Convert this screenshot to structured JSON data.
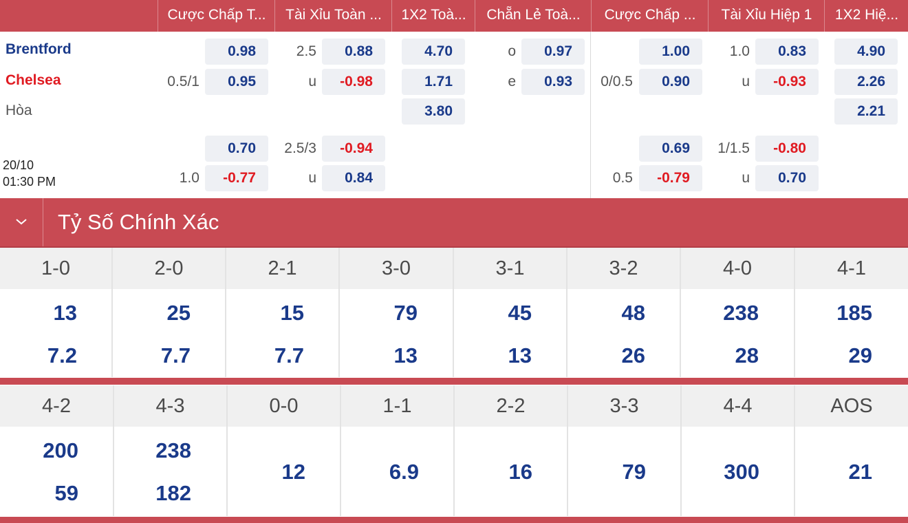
{
  "header": {
    "columns": [
      "Cược Chấp T...",
      "Tài Xỉu Toàn ...",
      "1X2 Toà...",
      "Chẵn Lẻ Toà...",
      "Cược Chấp ...",
      "Tài Xỉu Hiệp 1",
      "1X2 Hiệ..."
    ]
  },
  "match": {
    "home": "Brentford",
    "away": "Chelsea",
    "draw": "Hòa",
    "date": "20/10",
    "time": "01:30 PM",
    "home_color": "#1a3a8a",
    "away_color": "#e01b22"
  },
  "odds": {
    "row1": {
      "hcp_line": "0.5/1",
      "hcp_home": "0.98",
      "hcp_away": "0.95",
      "ou_line": "2.5",
      "ou_under": "u",
      "ou_over_val": "0.88",
      "ou_under_val": "-0.98",
      "x12_home": "4.70",
      "x12_away": "1.71",
      "x12_draw": "3.80",
      "oe_o": "o",
      "oe_e": "e",
      "oe_o_val": "0.97",
      "oe_e_val": "0.93",
      "h1_hcp_line": "0/0.5",
      "h1_hcp_home": "1.00",
      "h1_hcp_away": "0.90",
      "h1_ou_line": "1.0",
      "h1_ou_under": "u",
      "h1_ou_over_val": "0.83",
      "h1_ou_under_val": "-0.93",
      "h1_x12_home": "4.90",
      "h1_x12_away": "2.26",
      "h1_x12_draw": "2.21"
    },
    "row2": {
      "hcp_line": "1.0",
      "hcp_home": "0.70",
      "hcp_away": "-0.77",
      "ou_line": "2.5/3",
      "ou_under": "u",
      "ou_over_val": "-0.94",
      "ou_under_val": "0.84",
      "h1_hcp_line": "0.5",
      "h1_hcp_home": "0.69",
      "h1_hcp_away": "-0.79",
      "h1_ou_line": "1/1.5",
      "h1_ou_under": "u",
      "h1_ou_over_val": "-0.80",
      "h1_ou_under_val": "0.70"
    }
  },
  "correct_score": {
    "title": "Tỷ Số Chính Xác",
    "grid1": [
      {
        "score": "1-0",
        "home": "13",
        "away": "7.2"
      },
      {
        "score": "2-0",
        "home": "25",
        "away": "7.7"
      },
      {
        "score": "2-1",
        "home": "15",
        "away": "7.7"
      },
      {
        "score": "3-0",
        "home": "79",
        "away": "13"
      },
      {
        "score": "3-1",
        "home": "45",
        "away": "13"
      },
      {
        "score": "3-2",
        "home": "48",
        "away": "26"
      },
      {
        "score": "4-0",
        "home": "238",
        "away": "28"
      },
      {
        "score": "4-1",
        "home": "185",
        "away": "29"
      }
    ],
    "grid2": [
      {
        "score": "4-2",
        "home": "200",
        "away": "59"
      },
      {
        "score": "4-3",
        "home": "238",
        "away": "182"
      },
      {
        "score": "0-0",
        "single": "12"
      },
      {
        "score": "1-1",
        "single": "6.9"
      },
      {
        "score": "2-2",
        "single": "16"
      },
      {
        "score": "3-3",
        "single": "79"
      },
      {
        "score": "4-4",
        "single": "300"
      },
      {
        "score": "AOS",
        "single": "21"
      }
    ]
  }
}
